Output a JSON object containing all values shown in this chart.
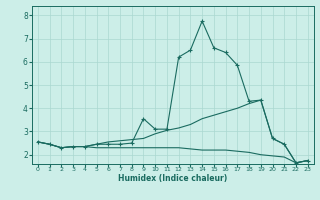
{
  "xlabel": "Humidex (Indice chaleur)",
  "bg_color": "#cceee8",
  "grid_color": "#aad8d0",
  "line_color": "#1a6b60",
  "xlim": [
    -0.5,
    23.5
  ],
  "ylim": [
    1.6,
    8.4
  ],
  "xticks": [
    0,
    1,
    2,
    3,
    4,
    5,
    6,
    7,
    8,
    9,
    10,
    11,
    12,
    13,
    14,
    15,
    16,
    17,
    18,
    19,
    20,
    21,
    22,
    23
  ],
  "yticks": [
    2,
    3,
    4,
    5,
    6,
    7,
    8
  ],
  "curve1_x": [
    0,
    1,
    2,
    3,
    4,
    5,
    6,
    7,
    8,
    9,
    10,
    11,
    12,
    13,
    14,
    15,
    16,
    17,
    18,
    19,
    20,
    21,
    22,
    23
  ],
  "curve1_y": [
    2.55,
    2.45,
    2.3,
    2.35,
    2.35,
    2.45,
    2.45,
    2.45,
    2.5,
    3.55,
    3.1,
    3.1,
    6.2,
    6.5,
    7.75,
    6.6,
    6.4,
    5.85,
    4.3,
    4.35,
    2.7,
    2.45,
    1.65,
    1.75
  ],
  "curve2_x": [
    0,
    1,
    2,
    3,
    4,
    5,
    6,
    7,
    8,
    9,
    10,
    11,
    12,
    13,
    14,
    15,
    16,
    17,
    18,
    19,
    20,
    21,
    22,
    23
  ],
  "curve2_y": [
    2.55,
    2.45,
    2.3,
    2.35,
    2.35,
    2.45,
    2.55,
    2.6,
    2.65,
    2.7,
    2.9,
    3.05,
    3.15,
    3.3,
    3.55,
    3.7,
    3.85,
    4.0,
    4.2,
    4.35,
    2.7,
    2.45,
    1.65,
    1.75
  ],
  "curve3_x": [
    0,
    1,
    2,
    3,
    4,
    5,
    6,
    7,
    8,
    9,
    10,
    11,
    12,
    13,
    14,
    15,
    16,
    17,
    18,
    19,
    20,
    21,
    22,
    23
  ],
  "curve3_y": [
    2.55,
    2.45,
    2.3,
    2.35,
    2.35,
    2.3,
    2.3,
    2.3,
    2.3,
    2.3,
    2.3,
    2.3,
    2.3,
    2.25,
    2.2,
    2.2,
    2.2,
    2.15,
    2.1,
    2.0,
    1.95,
    1.9,
    1.65,
    1.75
  ]
}
